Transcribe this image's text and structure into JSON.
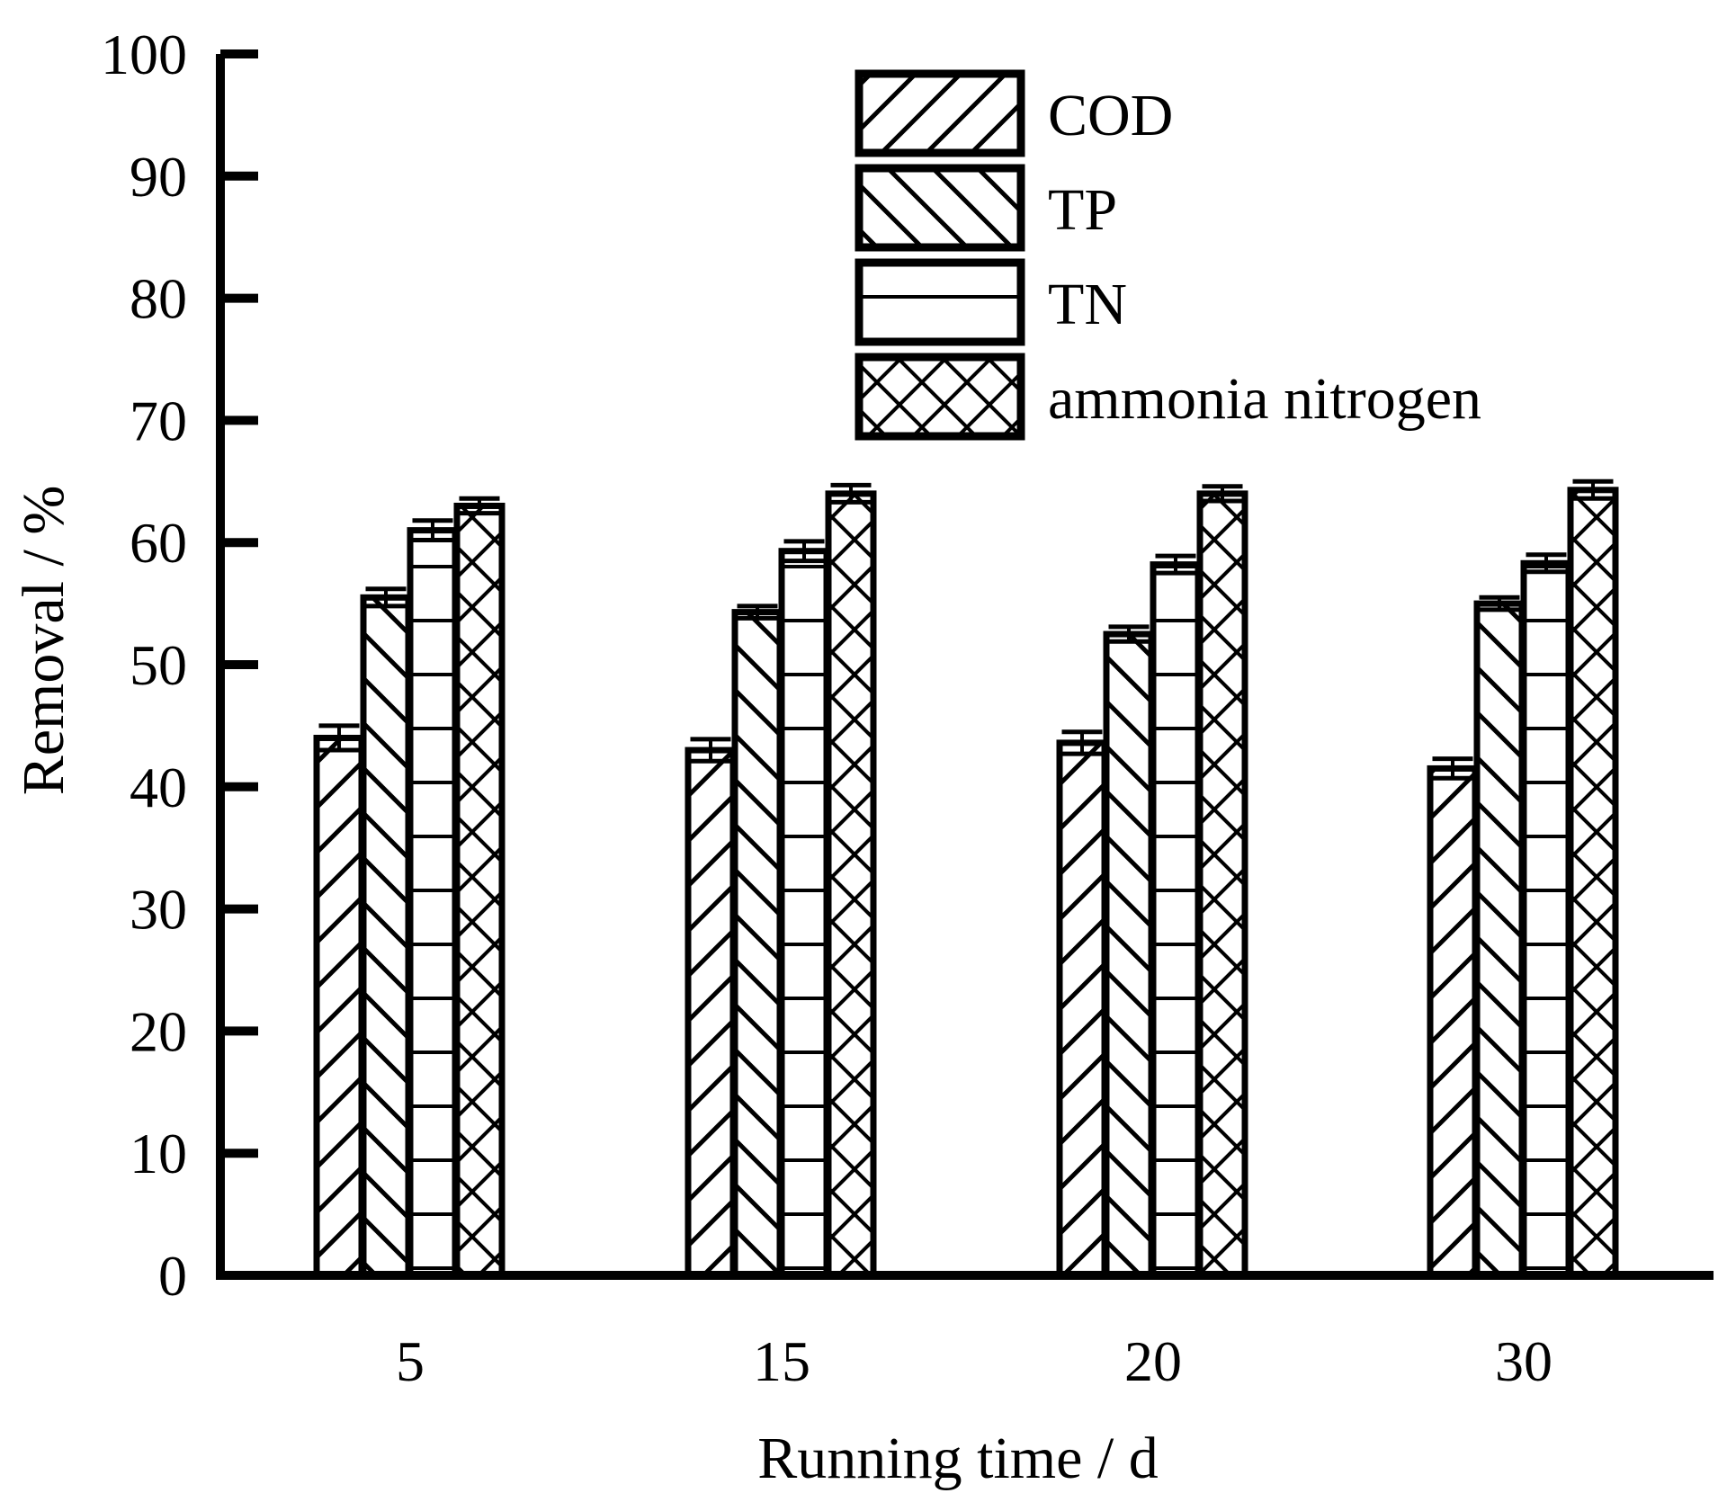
{
  "chart_data": {
    "type": "bar",
    "title": "",
    "xlabel": "Running time / d",
    "ylabel": "Removal / %",
    "ylim": [
      0,
      100
    ],
    "yticks": [
      0,
      10,
      20,
      30,
      40,
      50,
      60,
      70,
      80,
      90,
      100
    ],
    "categories": [
      "5",
      "15",
      "20",
      "30"
    ],
    "series": [
      {
        "name": "COD",
        "pattern": "diagonal-forward",
        "values": [
          44.0,
          43.0,
          43.6,
          41.5
        ],
        "errors": [
          1.0,
          0.9,
          0.9,
          0.8
        ]
      },
      {
        "name": "TP",
        "pattern": "diagonal-backward",
        "values": [
          55.5,
          54.3,
          52.5,
          55.0
        ],
        "errors": [
          0.7,
          0.5,
          0.6,
          0.5
        ]
      },
      {
        "name": "TN",
        "pattern": "horizontal",
        "values": [
          61.0,
          59.3,
          58.2,
          58.3
        ],
        "errors": [
          0.8,
          0.8,
          0.7,
          0.7
        ]
      },
      {
        "name": "ammonia nitrogen",
        "pattern": "crosshatch",
        "values": [
          63.0,
          64.0,
          64.0,
          64.3
        ],
        "errors": [
          0.6,
          0.7,
          0.6,
          0.7
        ]
      }
    ],
    "legend_position": "top-right",
    "grid": false,
    "colors": {
      "stroke": "#000000",
      "fill": "#ffffff"
    }
  }
}
